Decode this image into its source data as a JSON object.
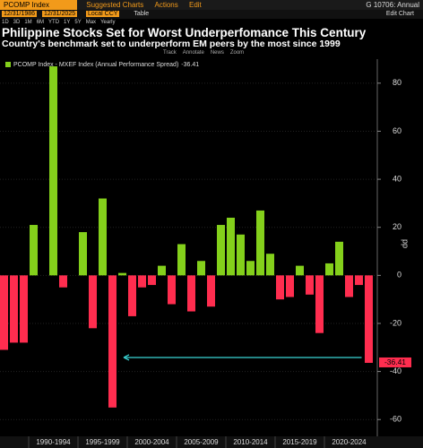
{
  "header": {
    "ticker": "PCOMP Index",
    "menu": [
      "Suggested Charts",
      "Actions",
      "Edit"
    ],
    "code": "G 10706: Annual",
    "start_date": "12/31/1986",
    "end_date": "12/31/2025",
    "currency": "Local CCY",
    "table": "Table",
    "edit_chart": "Edit Chart",
    "periods": [
      "1D",
      "3D",
      "1M",
      "6M",
      "YTD",
      "1Y",
      "5Y",
      "Max",
      "Yearly"
    ],
    "tools": [
      "Track",
      "Annotate",
      "News",
      "Zoom"
    ]
  },
  "chart_data": {
    "type": "bar",
    "title": "Philippine Stocks Set for Worst Underperfomance This Century",
    "subtitle": "Country's benchmark set to underperform EM peers by the most since 1999",
    "y_label": "pp",
    "x_groups": [
      "1990-1994",
      "1995-1999",
      "2000-2004",
      "2005-2009",
      "2010-2014",
      "2015-2019",
      "2020-2024"
    ],
    "categories": [
      null,
      null,
      null,
      null,
      null,
      null,
      null,
      null,
      null,
      null,
      null,
      null,
      null,
      null,
      null,
      null,
      null,
      null,
      null,
      null,
      null,
      null,
      null,
      null,
      null,
      null,
      null,
      null,
      null,
      null,
      null,
      null,
      null,
      null,
      null,
      null,
      null,
      null
    ],
    "series": [
      {
        "name": "PCOMP Index - MXEF Index (Annual Performance Spread)",
        "positive_color": "#84d01b",
        "negative_color": "#ff2d4f",
        "values": [
          -31,
          -28,
          -28,
          21,
          0,
          87,
          -5,
          0,
          18,
          -22,
          32,
          -55,
          1,
          -17,
          -5,
          -4,
          4,
          -12,
          13,
          -15,
          6,
          -13,
          21,
          24,
          17,
          6,
          27,
          9,
          -10,
          -9,
          4,
          -8,
          -24,
          5,
          14,
          -9,
          -4,
          -36.41
        ]
      }
    ],
    "ylim": [
      -67,
      90
    ],
    "yticks": [
      -60,
      -40,
      -20,
      0,
      20,
      40,
      60,
      80
    ],
    "grid": true,
    "legend": "top-left"
  }
}
